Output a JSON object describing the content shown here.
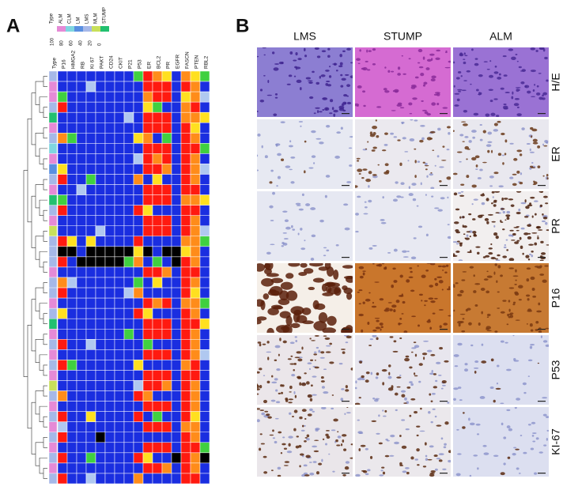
{
  "panel_a": {
    "label": "A",
    "heatmap": {
      "legend_title": "Type",
      "types": [
        {
          "name": "ALM",
          "color": "#e58ad6"
        },
        {
          "name": "CLM",
          "color": "#7fd6e0"
        },
        {
          "name": "LM",
          "color": "#5a8fe0"
        },
        {
          "name": "LMS",
          "color": "#a6b8e8"
        },
        {
          "name": "MLM",
          "color": "#c8e05a"
        },
        {
          "name": "STUMP",
          "color": "#22c070"
        }
      ],
      "scale_ticks": [
        100,
        80,
        60,
        40,
        20,
        0
      ],
      "scale_colors": [
        "#ff1a10",
        "#ff8c1a",
        "#ffe020",
        "#40d040",
        "#b0c8f0",
        "#1a2ee0"
      ],
      "missing_color": "#000000",
      "columns": [
        "Type",
        "P16",
        "HMGA2",
        "RB",
        "Ki 67",
        "PAKT",
        "CD24",
        "CKIT",
        "P21",
        "P53",
        "ER",
        "BCL2",
        "PR",
        "EGFR",
        "FASCN",
        "PTEN",
        "RBL2"
      ],
      "rows": [
        {
          "type": "LMS",
          "values": [
            0,
            0,
            0,
            0,
            0,
            0,
            0,
            0,
            40,
            100,
            80,
            60,
            0,
            80,
            60,
            40
          ]
        },
        {
          "type": "ALM",
          "values": [
            0,
            0,
            0,
            20,
            0,
            0,
            0,
            0,
            0,
            100,
            100,
            100,
            0,
            100,
            80,
            0
          ]
        },
        {
          "type": "ALM",
          "values": [
            40,
            0,
            0,
            0,
            0,
            0,
            0,
            0,
            0,
            80,
            100,
            100,
            0,
            60,
            80,
            20
          ]
        },
        {
          "type": "LMS",
          "values": [
            100,
            0,
            0,
            0,
            0,
            0,
            0,
            0,
            0,
            60,
            40,
            0,
            0,
            80,
            100,
            0
          ]
        },
        {
          "type": "STUMP",
          "values": [
            0,
            0,
            0,
            0,
            0,
            0,
            0,
            20,
            0,
            100,
            100,
            100,
            0,
            80,
            80,
            60
          ]
        },
        {
          "type": "ALM",
          "values": [
            0,
            0,
            0,
            0,
            0,
            0,
            0,
            0,
            0,
            100,
            100,
            100,
            0,
            100,
            60,
            0
          ]
        },
        {
          "type": "LMS",
          "values": [
            80,
            40,
            0,
            0,
            0,
            0,
            0,
            0,
            60,
            80,
            0,
            40,
            0,
            100,
            80,
            0
          ]
        },
        {
          "type": "CLM",
          "values": [
            0,
            0,
            0,
            0,
            0,
            0,
            0,
            0,
            0,
            100,
            100,
            100,
            0,
            100,
            100,
            40
          ]
        },
        {
          "type": "ALM",
          "values": [
            0,
            0,
            0,
            0,
            0,
            0,
            0,
            0,
            20,
            100,
            80,
            100,
            0,
            100,
            80,
            0
          ]
        },
        {
          "type": "LM",
          "values": [
            60,
            0,
            0,
            0,
            0,
            0,
            0,
            0,
            0,
            100,
            100,
            80,
            0,
            100,
            80,
            20
          ]
        },
        {
          "type": "LMS",
          "values": [
            100,
            0,
            0,
            40,
            0,
            0,
            0,
            0,
            80,
            0,
            60,
            0,
            0,
            100,
            80,
            0
          ]
        },
        {
          "type": "ALM",
          "values": [
            0,
            0,
            20,
            0,
            0,
            0,
            0,
            0,
            0,
            100,
            100,
            100,
            0,
            100,
            100,
            0
          ]
        },
        {
          "type": "STUMP",
          "values": [
            40,
            0,
            0,
            0,
            0,
            0,
            0,
            0,
            0,
            100,
            100,
            100,
            0,
            80,
            80,
            60
          ]
        },
        {
          "type": "LMS",
          "values": [
            100,
            0,
            0,
            0,
            0,
            0,
            0,
            0,
            100,
            60,
            0,
            0,
            0,
            100,
            100,
            0
          ]
        },
        {
          "type": "ALM",
          "values": [
            0,
            0,
            0,
            0,
            0,
            0,
            0,
            0,
            0,
            100,
            100,
            100,
            0,
            100,
            80,
            0
          ]
        },
        {
          "type": "MLM",
          "values": [
            0,
            0,
            0,
            0,
            20,
            0,
            0,
            0,
            0,
            100,
            100,
            100,
            0,
            100,
            80,
            20
          ]
        },
        {
          "type": "LMS",
          "values": [
            100,
            60,
            0,
            60,
            0,
            0,
            0,
            0,
            100,
            0,
            0,
            0,
            0,
            80,
            80,
            40
          ]
        },
        {
          "type": "LMS",
          "values": [
            null,
            null,
            0,
            null,
            null,
            null,
            null,
            null,
            60,
            null,
            0,
            null,
            null,
            60,
            80,
            0
          ]
        },
        {
          "type": "LMS",
          "values": [
            100,
            0,
            null,
            null,
            null,
            null,
            null,
            40,
            80,
            0,
            40,
            0,
            null,
            100,
            80,
            0
          ]
        },
        {
          "type": "ALM",
          "values": [
            0,
            0,
            0,
            0,
            0,
            0,
            0,
            0,
            0,
            100,
            100,
            80,
            0,
            100,
            100,
            0
          ]
        },
        {
          "type": "LMS",
          "values": [
            80,
            20,
            0,
            0,
            0,
            0,
            0,
            0,
            40,
            0,
            60,
            0,
            0,
            100,
            80,
            0
          ]
        },
        {
          "type": "LMS",
          "values": [
            100,
            0,
            0,
            0,
            0,
            0,
            0,
            20,
            80,
            0,
            0,
            0,
            0,
            100,
            60,
            0
          ]
        },
        {
          "type": "ALM",
          "values": [
            0,
            0,
            0,
            0,
            0,
            0,
            0,
            0,
            0,
            100,
            80,
            100,
            0,
            80,
            80,
            40
          ]
        },
        {
          "type": "LMS",
          "values": [
            60,
            0,
            0,
            0,
            0,
            0,
            0,
            0,
            100,
            60,
            0,
            0,
            0,
            100,
            80,
            0
          ]
        },
        {
          "type": "STUMP",
          "values": [
            0,
            0,
            0,
            0,
            0,
            0,
            0,
            0,
            0,
            100,
            100,
            100,
            0,
            100,
            100,
            60
          ]
        },
        {
          "type": "ALM",
          "values": [
            0,
            0,
            0,
            0,
            0,
            0,
            0,
            40,
            0,
            100,
            100,
            100,
            0,
            100,
            80,
            0
          ]
        },
        {
          "type": "LMS",
          "values": [
            100,
            0,
            0,
            20,
            0,
            0,
            0,
            0,
            0,
            40,
            0,
            0,
            0,
            100,
            80,
            0
          ]
        },
        {
          "type": "ALM",
          "values": [
            0,
            0,
            0,
            0,
            0,
            0,
            0,
            0,
            0,
            100,
            100,
            100,
            0,
            100,
            80,
            20
          ]
        },
        {
          "type": "LMS",
          "values": [
            100,
            40,
            0,
            0,
            0,
            0,
            0,
            0,
            60,
            0,
            0,
            0,
            0,
            80,
            100,
            0
          ]
        },
        {
          "type": "ALM",
          "values": [
            0,
            0,
            0,
            0,
            0,
            0,
            0,
            0,
            0,
            100,
            100,
            100,
            0,
            100,
            100,
            0
          ]
        },
        {
          "type": "MLM",
          "values": [
            0,
            0,
            0,
            0,
            0,
            0,
            0,
            0,
            20,
            100,
            100,
            80,
            0,
            100,
            80,
            0
          ]
        },
        {
          "type": "LMS",
          "values": [
            80,
            0,
            0,
            0,
            0,
            0,
            0,
            0,
            100,
            80,
            0,
            0,
            0,
            100,
            80,
            0
          ]
        },
        {
          "type": "ALM",
          "values": [
            0,
            0,
            0,
            0,
            0,
            0,
            0,
            0,
            0,
            100,
            100,
            100,
            0,
            100,
            80,
            0
          ]
        },
        {
          "type": "LMS",
          "values": [
            100,
            0,
            0,
            60,
            0,
            0,
            0,
            0,
            100,
            0,
            40,
            0,
            0,
            100,
            60,
            0
          ]
        },
        {
          "type": "ALM",
          "values": [
            20,
            0,
            0,
            0,
            0,
            0,
            0,
            0,
            0,
            100,
            100,
            100,
            0,
            80,
            80,
            0
          ]
        },
        {
          "type": "LMS",
          "values": [
            100,
            0,
            0,
            0,
            null,
            0,
            0,
            0,
            0,
            0,
            0,
            0,
            0,
            100,
            80,
            0
          ]
        },
        {
          "type": "ALM",
          "values": [
            0,
            0,
            0,
            0,
            0,
            0,
            0,
            0,
            0,
            100,
            100,
            100,
            0,
            100,
            100,
            40
          ]
        },
        {
          "type": "LMS",
          "values": [
            100,
            0,
            0,
            40,
            0,
            0,
            0,
            0,
            100,
            60,
            0,
            0,
            null,
            100,
            80,
            null
          ]
        },
        {
          "type": "ALM",
          "values": [
            0,
            0,
            0,
            0,
            0,
            0,
            0,
            0,
            0,
            100,
            100,
            80,
            0,
            100,
            80,
            0
          ]
        },
        {
          "type": "LMS",
          "values": [
            100,
            0,
            0,
            20,
            0,
            0,
            0,
            0,
            80,
            0,
            0,
            0,
            0,
            100,
            100,
            0
          ]
        }
      ]
    }
  },
  "panel_b": {
    "label": "B",
    "columns": [
      "LMS",
      "STUMP",
      "ALM"
    ],
    "rows": [
      "H/E",
      "ER",
      "PR",
      "P16",
      "P53",
      "KI-67"
    ]
  }
}
